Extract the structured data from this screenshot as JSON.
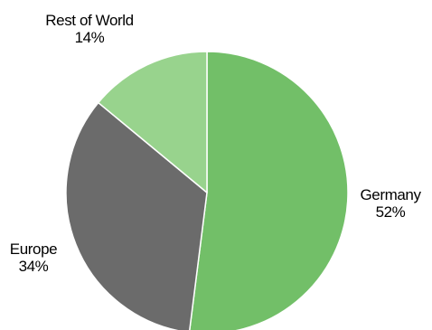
{
  "chart_data": {
    "type": "pie",
    "title": "",
    "slices": [
      {
        "label": "Germany",
        "value": 52,
        "value_label": "52%",
        "color": "#72BF68"
      },
      {
        "label": "Europe",
        "value": 34,
        "value_label": "34%",
        "color": "#6B6B6B"
      },
      {
        "label": "Rest of World",
        "value": 14,
        "value_label": "14%",
        "color": "#98D38D"
      }
    ],
    "start_angle_deg": 0,
    "direction": "clockwise",
    "slice_border_color": "#ffffff"
  }
}
